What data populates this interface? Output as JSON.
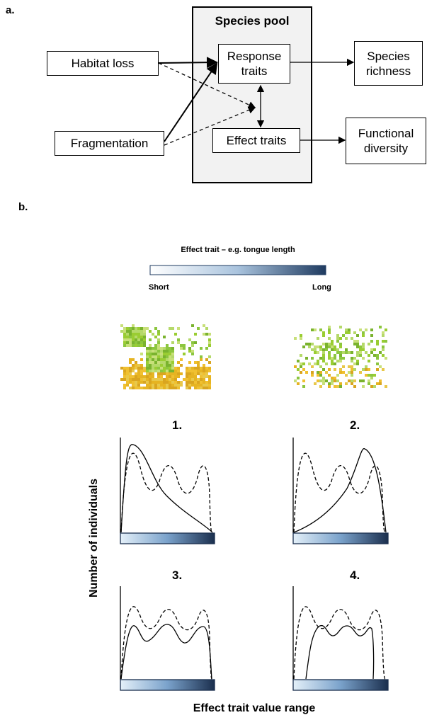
{
  "panel_a": {
    "label": "a.",
    "species_pool": "Species pool",
    "nodes": {
      "habitat_loss": "Habitat loss",
      "fragmentation": "Fragmentation",
      "response_traits": "Response traits",
      "effect_traits": "Effect traits",
      "species_richness": "Species richness",
      "functional_diversity": "Functional diversity"
    }
  },
  "panel_b": {
    "label": "b.",
    "legend_title": "Effect trait – e.g. tongue length",
    "legend_low": "Short",
    "legend_high": "Long",
    "panels": [
      "1.",
      "2.",
      "3.",
      "4."
    ],
    "y_label": "Number of individuals",
    "x_label": "Effect trait value range"
  }
}
